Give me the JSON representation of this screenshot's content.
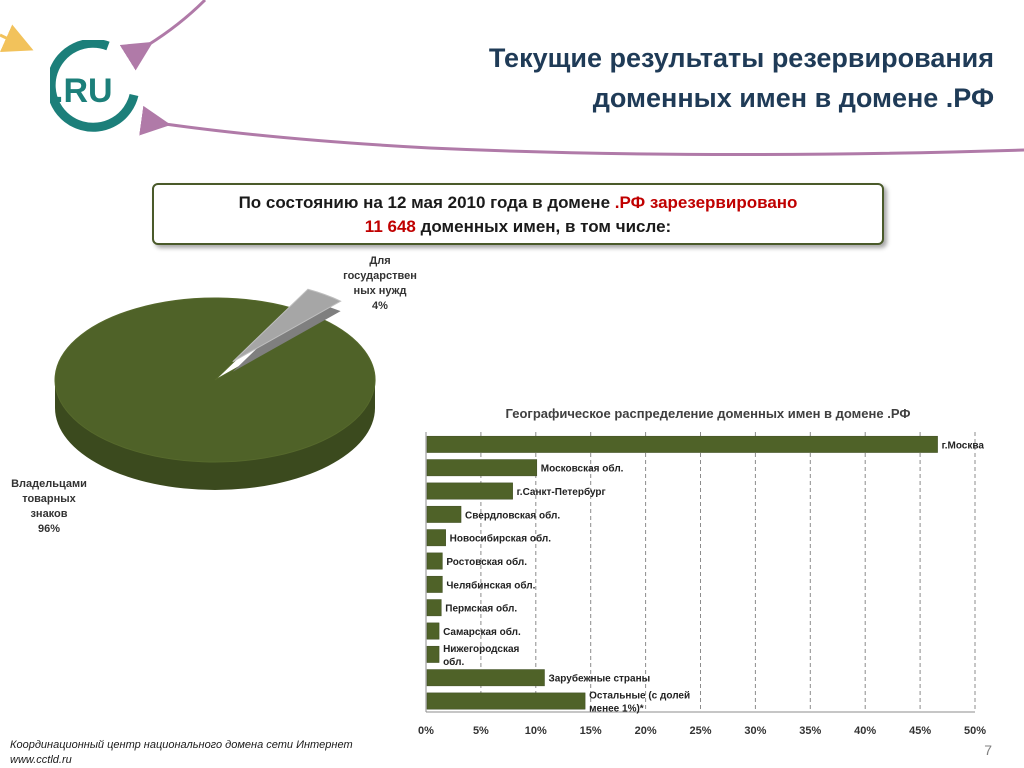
{
  "header": {
    "title_line1": "Текущие результаты резервирования",
    "title_line2": "доменных имен в домене .РФ",
    "logo_text": ".RU"
  },
  "status": {
    "part1": "По состоянию на 12 мая 2010 года в домене ",
    "part2": ".РФ зарезервировано",
    "part3": "11 648",
    "part4": " доменных имен, в том числе:"
  },
  "colors": {
    "accent_green": "#4f6228",
    "accent_red": "#c00000",
    "title_navy": "#1f3b57",
    "logo_teal": "#1c7f7a",
    "slice_gray": "#a6a6a6"
  },
  "chart_data": [
    {
      "type": "pie",
      "title": "",
      "slices": [
        {
          "label": "Владельцами товарных знаков",
          "value": 96,
          "value_label": "96%"
        },
        {
          "label": "Для государственных нужд",
          "value": 4,
          "value_label": "4%"
        }
      ],
      "label_lines": {
        "owners": [
          "Владельцами",
          "товарных",
          "знаков",
          "96%"
        ],
        "gov": [
          "Для",
          "государствен",
          "ных нужд",
          "4%"
        ]
      }
    },
    {
      "type": "bar",
      "orientation": "horizontal",
      "title": "Географическое распределение доменных имен в домене .РФ",
      "categories": [
        "г.Москва",
        "Московская обл.",
        "г.Санкт-Петербург",
        "Свердловская обл.",
        "Новосибирская обл.",
        "Ростовская обл.",
        "Челябинская обл.",
        "Пермская обл.",
        "Самарская обл.",
        "Нижегородская обл.",
        "Зарубежные страны",
        "Остальные (с долей менее 1%)*"
      ],
      "category_lines": [
        [
          "г.Москва"
        ],
        [
          "Московская обл."
        ],
        [
          "г.Санкт-Петербург"
        ],
        [
          "Свердловская обл."
        ],
        [
          "Новосибирская обл."
        ],
        [
          "Ростовская обл."
        ],
        [
          "Челябинская обл."
        ],
        [
          "Пермская обл."
        ],
        [
          "Самарская обл."
        ],
        [
          "Нижегородская",
          "обл."
        ],
        [
          "Зарубежные страны"
        ],
        [
          "Остальные (с долей",
          "менее 1%)*"
        ]
      ],
      "values": [
        46.5,
        10,
        7.8,
        3.1,
        1.7,
        1.4,
        1.4,
        1.3,
        1.1,
        1.1,
        10.7,
        14.4
      ],
      "xlim": [
        0,
        50
      ],
      "xticks": [
        "0%",
        "5%",
        "10%",
        "15%",
        "20%",
        "25%",
        "30%",
        "35%",
        "40%",
        "45%",
        "50%"
      ],
      "grid": true
    }
  ],
  "footer": {
    "line1": "Координационный центр национального домена сети Интернет",
    "line2": "www.cctld.ru",
    "page_number": "7"
  }
}
